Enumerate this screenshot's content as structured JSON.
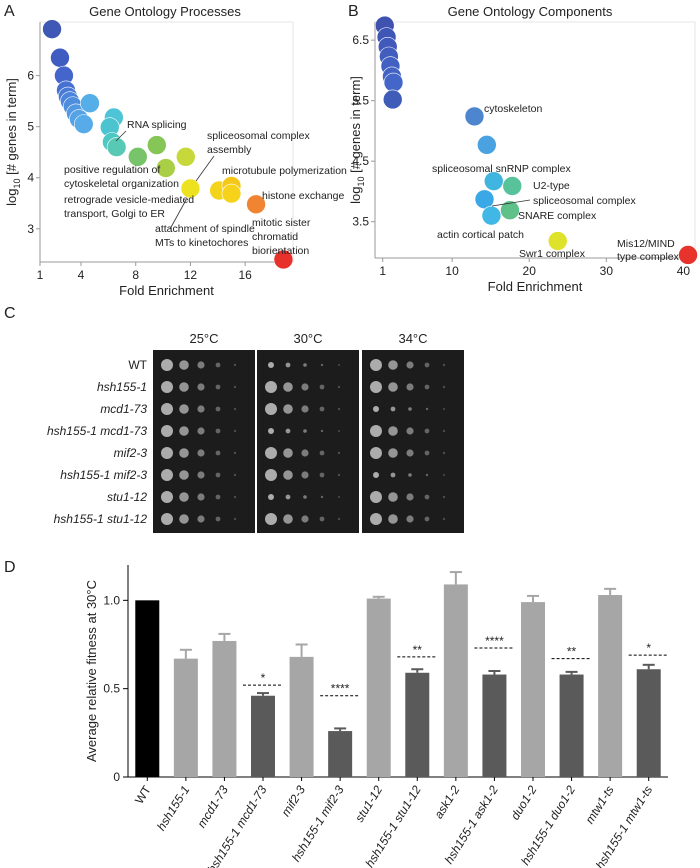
{
  "chart_data": [
    {
      "type": "scatter",
      "panel_label": "A",
      "title": "Gene Ontology Processes",
      "x_label": "Fold Enrichment",
      "y_label": [
        "log",
        "10",
        " [# genes in term]"
      ],
      "xlim": [
        1,
        19.5
      ],
      "xticks": [
        1,
        4,
        8,
        12,
        16
      ],
      "ylim": [
        2.35,
        7.05
      ],
      "yticks": [
        3,
        4,
        5,
        6
      ],
      "x": [
        1.88,
        2.46,
        2.75,
        2.9,
        3.04,
        3.19,
        3.4,
        3.63,
        3.85,
        4.2,
        4.65,
        6.4,
        6.1,
        6.26,
        6.6,
        8.15,
        9.54,
        10.2,
        11.66,
        12.0,
        14.1,
        15.0,
        15.0,
        16.8,
        18.8
      ],
      "values": [
        6.91,
        6.35,
        6.0,
        5.71,
        5.59,
        5.5,
        5.4,
        5.26,
        5.15,
        5.05,
        5.46,
        5.18,
        4.99,
        4.7,
        4.6,
        4.41,
        4.64,
        4.19,
        4.41,
        3.79,
        3.75,
        3.84,
        3.69,
        3.48,
        2.4
      ],
      "colors": [
        "#3f57b5",
        "#3f5cc0",
        "#4466cc",
        "#4771d1",
        "#4a7ad6",
        "#4c84db",
        "#4f8edf",
        "#5398e3",
        "#55a2e6",
        "#57abe8",
        "#55aee8",
        "#4fc4d6",
        "#4cc4cf",
        "#4dc8c3",
        "#58c9b4",
        "#77c46b",
        "#86c656",
        "#a8cf46",
        "#c6d83a",
        "#ece21f",
        "#f2d51b",
        "#f4c719",
        "#f6d31a",
        "#f08432",
        "#e8312b"
      ],
      "annotations": [
        [
          "RNA splicing"
        ],
        [
          "spliceosomal complex",
          "assembly"
        ],
        [
          "positive regulation of",
          "cytoskeletal organization"
        ],
        [
          "microtubule polymerization"
        ],
        [
          "retrograde vesicle-mediated",
          "transport, Golgi to ER"
        ],
        [
          "histone exchange"
        ],
        [
          "attachment of spindle",
          "MTs to kinetochores"
        ],
        [
          "mitotic sister",
          "chromatid",
          "biorientation"
        ]
      ]
    },
    {
      "type": "scatter",
      "panel_label": "B",
      "title": "Gene Ontology Components",
      "x_label": "Fold Enrichment",
      "y_label": [
        "log",
        "10",
        " [# genes in term]"
      ],
      "xlim": [
        0,
        41.5
      ],
      "xticks": [
        1,
        10,
        20,
        30,
        40
      ],
      "ylim": [
        2.9,
        6.8
      ],
      "yticks": [
        3.5,
        4.5,
        5.5,
        6.5
      ],
      "x": [
        1.26,
        1.5,
        1.65,
        1.8,
        2.0,
        2.2,
        2.4,
        2.3,
        12.9,
        14.5,
        15.4,
        17.8,
        14.2,
        17.5,
        15.1,
        23.7,
        40.6
      ],
      "values": [
        6.74,
        6.55,
        6.39,
        6.23,
        6.07,
        5.9,
        5.8,
        5.52,
        5.24,
        4.77,
        4.17,
        4.09,
        3.87,
        3.69,
        3.6,
        3.18,
        2.95
      ],
      "colors": [
        "#3f52b0",
        "#3f56b6",
        "#4059bb",
        "#415dbe",
        "#4260c2",
        "#4363c4",
        "#4466c8",
        "#3f5cb8",
        "#4d86cf",
        "#4aa2e0",
        "#3fb5df",
        "#58c39a",
        "#3aa8e6",
        "#5fc08a",
        "#40b7e4",
        "#dfe22a",
        "#e8322c"
      ],
      "annotations": [
        [
          "cytoskeleton"
        ],
        [
          "spliceosomal snRNP complex"
        ],
        [
          "U2-type",
          "spliceosomal complex"
        ],
        [
          "SNARE complex"
        ],
        [
          "actin cortical patch"
        ],
        [
          "Swr1 complex"
        ],
        [
          "Mis12/MIND",
          "type complex"
        ]
      ]
    },
    {
      "type": "bar",
      "panel_label": "D",
      "y_label": "Average relative fitness at 30°C",
      "categories": [
        "WT",
        "hsh155-1",
        "mcd1-73",
        "hsh155-1 mcd1-73",
        "mif2-3",
        "hsh155-1 mif2-3",
        "stu1-12",
        "hsh155-1 stu1-12",
        "ask1-2",
        "hsh155-1 ask1-2",
        "duo1-2",
        "hsh155-1 duo1-2",
        "mtw1-ts",
        "hsh155-1 mtw1-ts"
      ],
      "values": [
        1.0,
        0.67,
        0.77,
        0.46,
        0.68,
        0.26,
        1.01,
        0.59,
        1.09,
        0.58,
        0.99,
        0.58,
        1.03,
        0.61
      ],
      "errors": [
        0,
        0.05,
        0.04,
        0.015,
        0.07,
        0.015,
        0.01,
        0.02,
        0.07,
        0.02,
        0.035,
        0.015,
        0.035,
        0.025
      ],
      "colors": [
        "#000000",
        "#a6a6a6",
        "#a6a6a6",
        "#5a5a5a",
        "#a6a6a6",
        "#5a5a5a",
        "#a6a6a6",
        "#5a5a5a",
        "#a6a6a6",
        "#5a5a5a",
        "#a6a6a6",
        "#5a5a5a",
        "#a6a6a6",
        "#5a5a5a"
      ],
      "expected": [
        null,
        null,
        null,
        0.52,
        null,
        0.46,
        null,
        0.68,
        null,
        0.73,
        null,
        0.67,
        null,
        0.69
      ],
      "stars": [
        null,
        null,
        null,
        "*",
        null,
        "****",
        null,
        "**",
        null,
        "****",
        null,
        "**",
        null,
        "*"
      ],
      "ylim": [
        0,
        1.2
      ],
      "yticks": [
        0,
        0.5,
        {
          "value": 1,
          "label": "1.0"
        }
      ]
    }
  ],
  "panel_c": {
    "panel_label": "C",
    "temperatures": [
      "25°C",
      "30°C",
      "34°C"
    ],
    "strains": [
      "WT",
      "hsh155-1",
      "mcd1-73",
      "hsh155-1 mcd1-73",
      "mif2-3",
      "hsh155-1 mif2-3",
      "stu1-12",
      "hsh155-1 stu1-12"
    ]
  }
}
